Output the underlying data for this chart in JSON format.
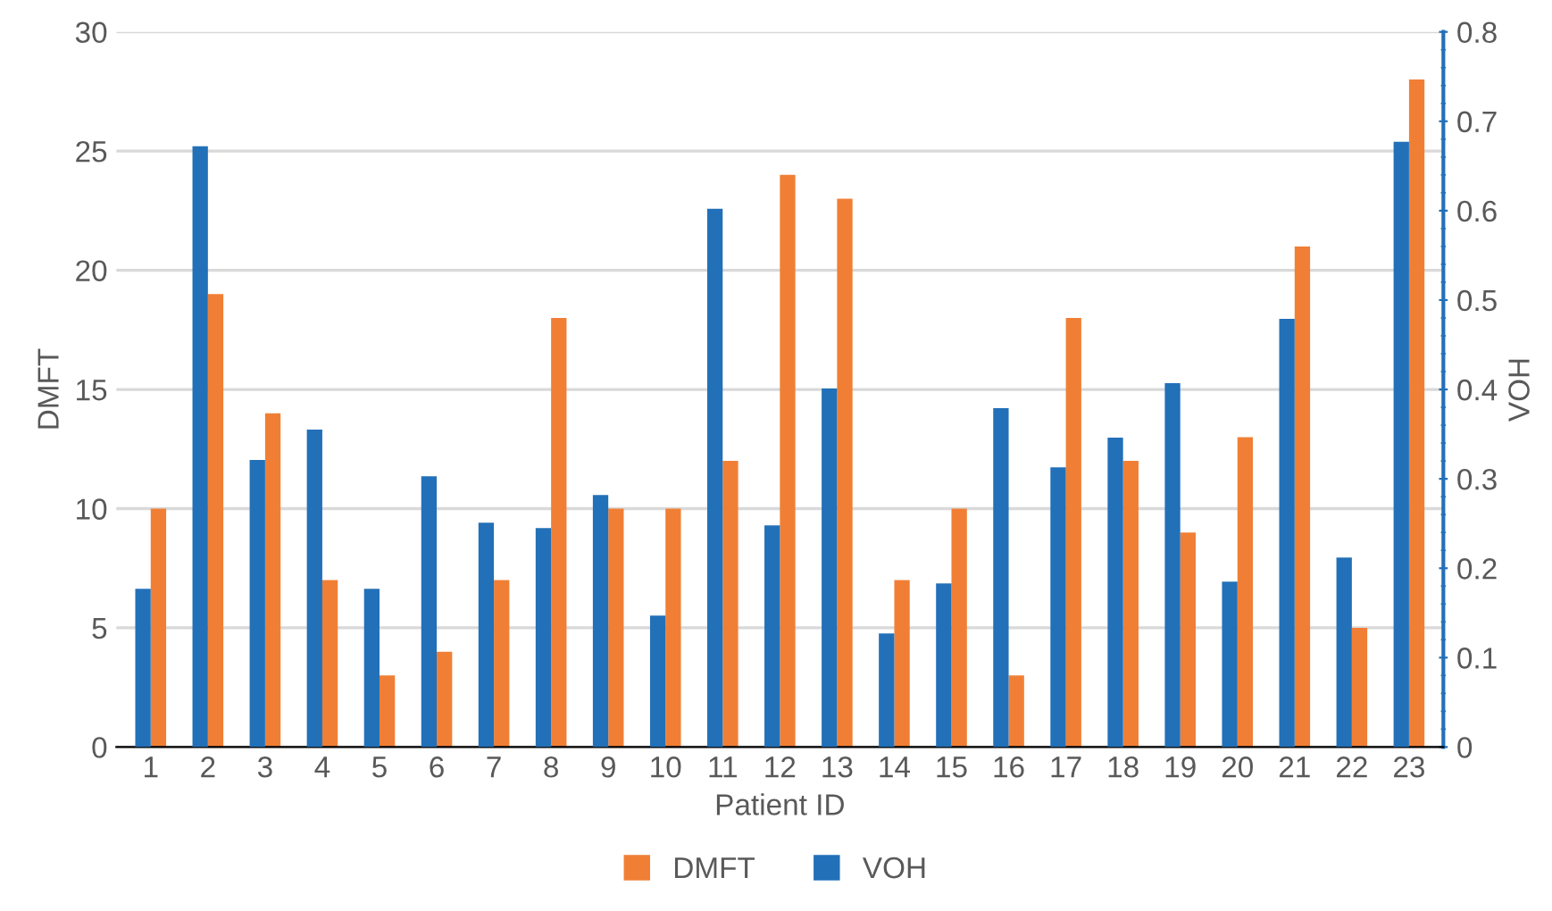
{
  "chart_data": {
    "type": "bar",
    "xlabel": "Patient ID",
    "ylabel": "DMFT",
    "y2label": "VOH",
    "categories": [
      "1",
      "2",
      "3",
      "4",
      "5",
      "6",
      "7",
      "8",
      "9",
      "10",
      "11",
      "12",
      "13",
      "14",
      "15",
      "16",
      "17",
      "18",
      "19",
      "20",
      "21",
      "22",
      "23"
    ],
    "series": [
      {
        "name": "VOH",
        "color": "#2270b8",
        "axis": "y2",
        "values": [
          0.177,
          0.672,
          0.321,
          0.355,
          0.177,
          0.303,
          0.251,
          0.245,
          0.282,
          0.147,
          0.602,
          0.248,
          0.401,
          0.127,
          0.183,
          0.379,
          0.313,
          0.346,
          0.407,
          0.185,
          0.479,
          0.212,
          0.677
        ]
      },
      {
        "name": "DMFT",
        "color": "#f07f35",
        "axis": "y",
        "values": [
          10,
          19,
          14,
          7,
          3,
          4,
          7,
          18,
          10,
          10,
          12,
          24,
          23,
          7,
          10,
          3,
          18,
          12,
          9,
          13,
          21,
          5,
          28
        ]
      }
    ],
    "ylim": [
      0,
      30
    ],
    "yticks": [
      0,
      5,
      10,
      15,
      20,
      25,
      30
    ],
    "y2lim": [
      0,
      0.8
    ],
    "y2ticks": [
      0,
      0.1,
      0.2,
      0.3,
      0.4,
      0.5,
      0.6,
      0.7,
      0.8
    ],
    "grid": "y",
    "legend": "bottom"
  }
}
